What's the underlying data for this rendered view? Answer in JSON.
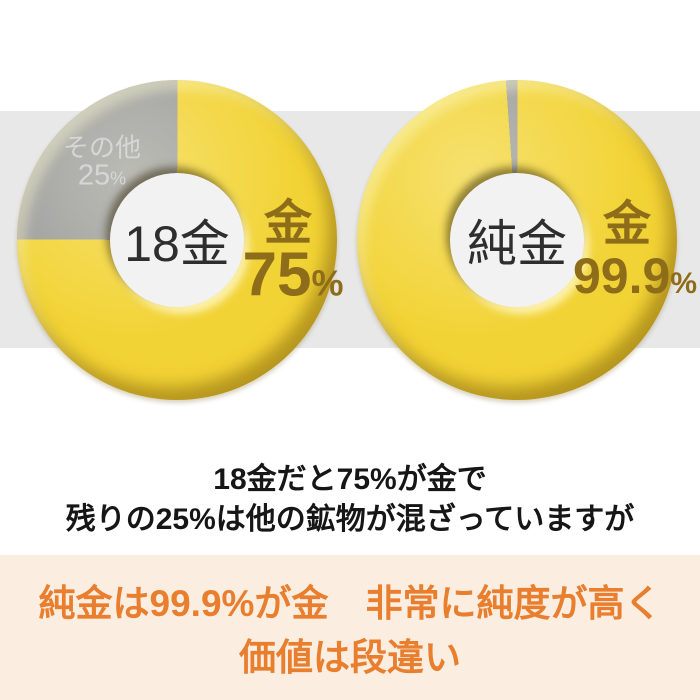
{
  "chart_data": [
    {
      "type": "pie",
      "variant": "donut",
      "center_label": "18金",
      "slices": [
        {
          "label": "金",
          "value": 75,
          "display": "75",
          "unit": "%",
          "color": "#f2d335"
        },
        {
          "label": "その他",
          "value": 25,
          "display": "25",
          "unit": "%",
          "color": "#9c9c9c"
        }
      ]
    },
    {
      "type": "pie",
      "variant": "donut",
      "center_label": "純金",
      "slices": [
        {
          "label": "金",
          "value": 99.9,
          "display": "99.9",
          "unit": "%",
          "color": "#f2d335"
        },
        {
          "label": "",
          "value": 0.1,
          "display": "",
          "unit": "",
          "color": "#9c9c9c"
        }
      ]
    }
  ],
  "caption": {
    "line1": "18金だと75%が金で",
    "line2": "残りの25%は他の鉱物が混ざっていますが"
  },
  "banner": {
    "line1": "純金は99.9%が金　非常に純度が高く",
    "line2": "価値は段違い"
  },
  "colors": {
    "background": "#ffffff",
    "band": "#e8e8e8",
    "hole": "#f2f2f2",
    "gold": "#f2d335",
    "gray": "#9c9c9c",
    "gold_text": "#8d6c1a",
    "center_text": "#2e2e2e",
    "other_text": "#d6d6d6",
    "caption_text": "#161616",
    "banner_bg": "#fbeee0",
    "banner_text": "#e87e2e"
  }
}
